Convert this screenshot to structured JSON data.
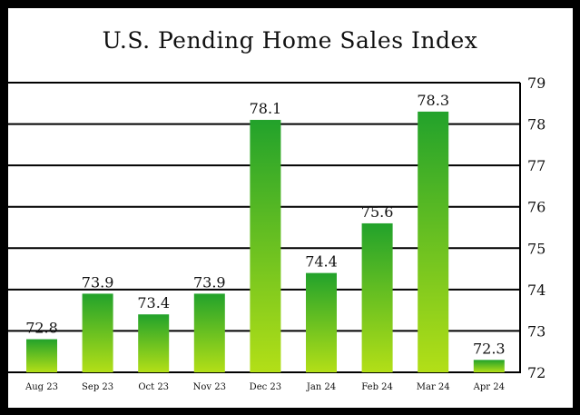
{
  "chart_data": {
    "type": "bar",
    "title": "U.S. Pending Home Sales Index",
    "categories": [
      "Aug 23",
      "Sep 23",
      "Oct 23",
      "Nov 23",
      "Dec 23",
      "Jan 24",
      "Feb 24",
      "Mar 24",
      "Apr 24"
    ],
    "values": [
      72.8,
      73.9,
      73.4,
      73.9,
      78.1,
      74.4,
      75.6,
      78.3,
      72.3
    ],
    "data_labels": [
      "72.8",
      "73.9",
      "73.4",
      "73.9",
      "78.1",
      "74.4",
      "75.6",
      "78.3",
      "72.3"
    ],
    "ylim": [
      72,
      79
    ],
    "yticks": [
      72,
      73,
      74,
      75,
      76,
      77,
      78,
      79
    ],
    "y_axis_position": "right",
    "grid": "horizontal",
    "colors": {
      "bar_top": "#22a22b",
      "bar_bottom": "#b3df17",
      "grid": "#000000",
      "frame": "#000000"
    }
  }
}
